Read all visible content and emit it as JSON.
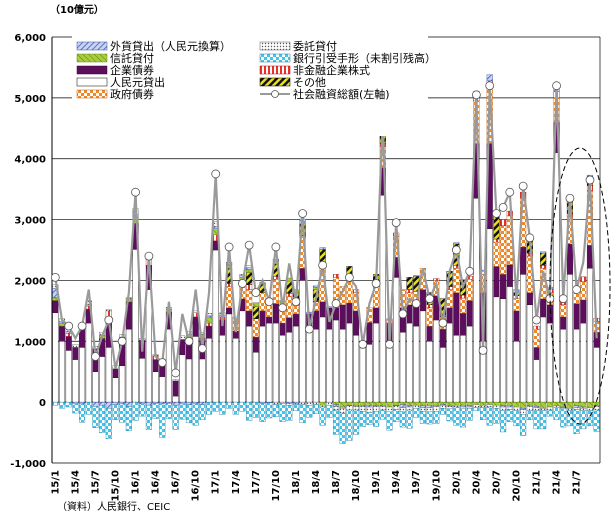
{
  "chart_data": {
    "type": "bar",
    "unit_label": "（10億元）",
    "source": "（資料）人民銀行、CEIC",
    "ylim": [
      -1000,
      6000
    ],
    "yticks": [
      "6,000",
      "5,000",
      "4,000",
      "3,000",
      "2,000",
      "1,000",
      "0",
      "-1,000"
    ],
    "ytick_values": [
      6000,
      5000,
      4000,
      3000,
      2000,
      1000,
      0,
      -1000
    ],
    "x_tick_labels": [
      "15/1",
      "15/4",
      "15/7",
      "15/10",
      "16/1",
      "16/4",
      "16/7",
      "16/10",
      "17/1",
      "17/4",
      "17/7",
      "17/10",
      "18/1",
      "18/4",
      "18/7",
      "18/10",
      "19/1",
      "19/4",
      "19/7",
      "19/10",
      "20/1",
      "20/4",
      "20/7",
      "20/10",
      "21/1",
      "21/4",
      "21/7"
    ],
    "legend": [
      {
        "label": "外貨貸出（人民元換算）",
        "key": "fx"
      },
      {
        "label": "委託貸付",
        "key": "entrusted"
      },
      {
        "label": "信託貸付",
        "key": "trust"
      },
      {
        "label": "銀行引受手形（未割引残高）",
        "key": "bills"
      },
      {
        "label": "企業債券",
        "key": "corp"
      },
      {
        "label": "非金融企業株式",
        "key": "equity"
      },
      {
        "label": "人民元貸出",
        "key": "rmb"
      },
      {
        "label": "その他",
        "key": "other"
      },
      {
        "label": "政府債券",
        "key": "gov"
      },
      {
        "label": "社会融資総額(左軸)",
        "key": "total"
      }
    ],
    "stack_order": [
      "rmb",
      "corp",
      "gov",
      "equity",
      "other",
      "trust",
      "fx",
      "entrusted",
      "bills"
    ],
    "styles": {
      "rmb": {
        "fill": "#ffffff",
        "stroke": "#000000"
      },
      "corp": {
        "fill": "#5c0d5c",
        "stroke": "#3a073a"
      },
      "gov": {
        "fill": "#ee8a2a",
        "stroke": "#b85c10"
      },
      "equity": {
        "fill": "#e8332a",
        "stroke": "#b01010"
      },
      "other": {
        "fill": "#1a1a1a",
        "stroke": "#000000"
      },
      "trust": {
        "fill": "#a8cc3c",
        "stroke": "#6f8f1a"
      },
      "fx": {
        "fill": "#8fa8e0",
        "stroke": "#3850a8"
      },
      "entrusted": {
        "fill": "#d0d0d0",
        "stroke": "#606060"
      },
      "bills": {
        "fill": "#42c4ec",
        "stroke": "#1880a8"
      },
      "total_line": "#9a9a9a",
      "grid": "#000000"
    },
    "series": {
      "total": [
        2050,
        1350,
        1250,
        1050,
        1250,
        1850,
        750,
        1080,
        1350,
        550,
        1000,
        1800,
        3450,
        830,
        2400,
        750,
        650,
        1650,
        480,
        1450,
        1000,
        1850,
        880,
        1800,
        3750,
        1250,
        2550,
        1150,
        1950,
        2580,
        1800,
        2000,
        1650,
        2550,
        1550,
        2280,
        1650,
        3100,
        1200,
        1700,
        2250,
        1320,
        1620,
        1820,
        2050,
        1900,
        950,
        1620,
        1950,
        4650,
        950,
        2950,
        1450,
        1700,
        1620,
        2200,
        1700,
        1950,
        1300,
        2150,
        2500,
        1900,
        2150,
        5050,
        850,
        5200,
        3100,
        3200,
        3450,
        1700,
        3550,
        2700,
        1350,
        2150,
        1700,
        5200,
        1700,
        3350,
        1850,
        2300,
        3650,
        1050
      ],
      "rmb": [
        1470,
        1000,
        850,
        700,
        900,
        1300,
        500,
        750,
        900,
        400,
        600,
        1200,
        2510,
        720,
        1850,
        500,
        420,
        1200,
        100,
        780,
        710,
        1080,
        710,
        1050,
        2500,
        1100,
        1450,
        1050,
        1500,
        1250,
        820,
        1250,
        1300,
        1300,
        1100,
        1150,
        1250,
        2000,
        1200,
        1200,
        1400,
        1200,
        1350,
        1200,
        1300,
        1100,
        900,
        950,
        1300,
        3400,
        1000,
        2050,
        1150,
        1300,
        1250,
        1500,
        1000,
        1350,
        900,
        1300,
        1100,
        1100,
        1250,
        3350,
        1000,
        2850,
        1730,
        1700,
        1900,
        1000,
        2100,
        1600,
        700,
        1400,
        1300,
        4100,
        1200,
        2100,
        1200,
        1300,
        2200,
        900
      ],
      "corp": [
        200,
        250,
        230,
        200,
        300,
        230,
        380,
        300,
        500,
        150,
        400,
        450,
        430,
        300,
        400,
        200,
        250,
        280,
        250,
        250,
        250,
        320,
        350,
        200,
        150,
        250,
        100,
        120,
        200,
        250,
        250,
        250,
        100,
        320,
        200,
        240,
        200,
        200,
        250,
        300,
        250,
        350,
        200,
        400,
        330,
        400,
        100,
        360,
        250,
        450,
        300,
        330,
        400,
        300,
        320,
        350,
        250,
        400,
        300,
        250,
        700,
        360,
        420,
        900,
        800,
        1400,
        500,
        400,
        360,
        500,
        450,
        200,
        200,
        300,
        300,
        500,
        200,
        500,
        420,
        380,
        380,
        250
      ],
      "gov": [
        0,
        0,
        0,
        0,
        0,
        0,
        0,
        0,
        0,
        0,
        0,
        0,
        0,
        0,
        0,
        0,
        0,
        0,
        0,
        0,
        0,
        0,
        0,
        0,
        0,
        0,
        350,
        200,
        200,
        350,
        300,
        300,
        250,
        400,
        250,
        350,
        200,
        500,
        0,
        150,
        550,
        0,
        500,
        300,
        350,
        300,
        0,
        250,
        350,
        350,
        0,
        350,
        300,
        200,
        250,
        350,
        300,
        250,
        200,
        300,
        400,
        250,
        350,
        700,
        300,
        950,
        400,
        800,
        800,
        200,
        800,
        600,
        300,
        500,
        200,
        400,
        200,
        450,
        200,
        300,
        900,
        180
      ],
      "equity": [
        0,
        0,
        50,
        0,
        0,
        50,
        0,
        0,
        100,
        0,
        70,
        0,
        0,
        0,
        100,
        60,
        0,
        0,
        0,
        0,
        50,
        70,
        0,
        50,
        100,
        50,
        50,
        0,
        0,
        80,
        0,
        0,
        0,
        50,
        50,
        50,
        0,
        30,
        0,
        0,
        60,
        0,
        50,
        0,
        50,
        50,
        0,
        0,
        0,
        50,
        50,
        50,
        0,
        50,
        0,
        0,
        50,
        30,
        0,
        50,
        50,
        50,
        50,
        60,
        50,
        80,
        50,
        100,
        80,
        50,
        100,
        50,
        50,
        50,
        60,
        100,
        50,
        50,
        70,
        80,
        80,
        50
      ],
      "other": [
        0,
        0,
        0,
        0,
        0,
        0,
        0,
        0,
        0,
        0,
        0,
        0,
        0,
        0,
        0,
        0,
        0,
        0,
        0,
        0,
        0,
        0,
        0,
        0,
        0,
        0,
        250,
        0,
        100,
        200,
        200,
        150,
        0,
        200,
        0,
        200,
        150,
        200,
        0,
        200,
        250,
        0,
        0,
        0,
        200,
        0,
        0,
        0,
        200,
        350,
        0,
        0,
        0,
        200,
        250,
        0,
        200,
        0,
        300,
        250,
        350,
        250,
        0,
        0,
        0,
        0,
        400,
        0,
        0,
        50,
        0,
        250,
        0,
        200,
        0,
        0,
        0,
        250,
        0,
        0,
        150,
        0
      ],
      "trust": [
        50,
        50,
        0,
        0,
        20,
        0,
        0,
        50,
        0,
        0,
        0,
        50,
        100,
        0,
        50,
        0,
        20,
        50,
        0,
        0,
        100,
        0,
        50,
        100,
        100,
        0,
        50,
        0,
        50,
        50,
        50,
        0,
        30,
        50,
        50,
        50,
        50,
        0,
        0,
        40,
        -50,
        0,
        -40,
        -80,
        -50,
        -50,
        -50,
        -50,
        -50,
        -50,
        -80,
        -50,
        -40,
        -60,
        -50,
        -60,
        -50,
        -50,
        -40,
        -50,
        -50,
        -50,
        -60,
        -40,
        -50,
        -40,
        -50,
        -60,
        -50,
        -80,
        -100,
        -50,
        -70,
        -100,
        -80,
        -60,
        -80,
        -100,
        -60,
        -80,
        -90,
        -50
      ],
      "fx": [
        150,
        30,
        30,
        -30,
        -30,
        20,
        -70,
        -50,
        -100,
        -40,
        -30,
        -70,
        40,
        -30,
        -50,
        -20,
        -30,
        -20,
        -50,
        -30,
        -40,
        -30,
        -40,
        20,
        40,
        30,
        20,
        0,
        30,
        30,
        0,
        -20,
        -10,
        30,
        20,
        -20,
        -20,
        80,
        30,
        20,
        30,
        20,
        -30,
        -20,
        -10,
        -20,
        -20,
        -30,
        -20,
        -20,
        20,
        -10,
        -50,
        -20,
        10,
        -30,
        -40,
        -20,
        -10,
        -20,
        20,
        -30,
        -20,
        100,
        20,
        100,
        30,
        -20,
        -30,
        50,
        -20,
        -20,
        -20,
        20,
        30,
        100,
        -10,
        20,
        -30,
        -20,
        20,
        -20
      ],
      "entrusted": [
        60,
        40,
        30,
        50,
        30,
        70,
        40,
        50,
        20,
        50,
        40,
        20,
        100,
        30,
        30,
        20,
        20,
        30,
        20,
        60,
        50,
        30,
        30,
        40,
        80,
        40,
        30,
        30,
        20,
        30,
        20,
        20,
        30,
        -40,
        -20,
        -30,
        -20,
        -40,
        -50,
        -40,
        -30,
        -50,
        -60,
        -80,
        -70,
        -60,
        -80,
        -90,
        -80,
        -60,
        -80,
        -60,
        -70,
        -50,
        -50,
        -60,
        -70,
        -80,
        -50,
        -40,
        -30,
        -30,
        -20,
        -50,
        -40,
        -40,
        -50,
        -60,
        -40,
        -60,
        -80,
        -70,
        -50,
        -40,
        -50,
        -30,
        -20,
        -40,
        -30,
        -40,
        -50,
        -60
      ],
      "bills": [
        -50,
        -100,
        -80,
        -150,
        -300,
        -200,
        -350,
        -450,
        -500,
        -250,
        -300,
        -400,
        -300,
        -200,
        -400,
        -250,
        -550,
        -250,
        -400,
        -250,
        -300,
        -350,
        -250,
        -200,
        -150,
        -200,
        -100,
        -200,
        -150,
        -300,
        -250,
        -300,
        -250,
        -200,
        -300,
        -250,
        -100,
        -300,
        -200,
        -150,
        -300,
        -200,
        -400,
        -500,
        -500,
        -400,
        -250,
        -200,
        -250,
        -150,
        -300,
        -200,
        -250,
        -300,
        -150,
        -200,
        -200,
        -200,
        -100,
        -200,
        -300,
        -300,
        -200,
        -50,
        -200,
        -300,
        -250,
        -350,
        -200,
        -250,
        -350,
        -150,
        -300,
        -300,
        -100,
        -200,
        -300,
        -250,
        -400,
        -300,
        -250,
        -350
      ]
    }
  }
}
